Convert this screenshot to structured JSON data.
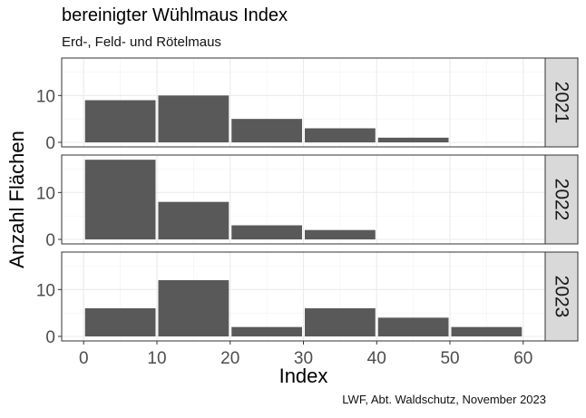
{
  "chart_data": {
    "type": "bar",
    "title": "bereinigter Wühlmaus Index",
    "subtitle": "Erd-, Feld- und Rötelmaus",
    "xlabel": "Index",
    "ylabel": "Anzahl Flächen",
    "caption": "LWF, Abt. Waldschutz, November 2023",
    "xlim": [
      -3,
      63
    ],
    "ylim": [
      0,
      18
    ],
    "x_ticks": [
      0,
      10,
      20,
      30,
      40,
      50,
      60
    ],
    "y_ticks": [
      0,
      10
    ],
    "bin_width": 10,
    "bar_color": "#595959",
    "strip_fill": "#d9d9d9",
    "grid": true,
    "facets": [
      {
        "label": "2021",
        "bins": [
          5,
          15,
          25,
          35,
          45
        ],
        "values": [
          9,
          10,
          5,
          3,
          1
        ]
      },
      {
        "label": "2022",
        "bins": [
          5,
          15,
          25,
          35
        ],
        "values": [
          17,
          8,
          3,
          2
        ]
      },
      {
        "label": "2023",
        "bins": [
          5,
          15,
          25,
          35,
          45,
          55
        ],
        "values": [
          6,
          12,
          2,
          6,
          4,
          2
        ]
      }
    ]
  }
}
